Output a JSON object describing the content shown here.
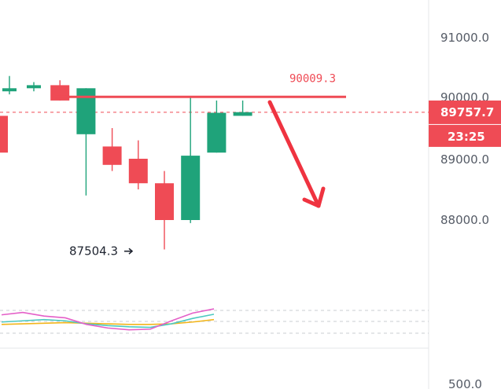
{
  "colors": {
    "up": "#1fa37a",
    "down": "#ef4b55",
    "level_line": "#ef4b55",
    "arrow": "#ef3340",
    "axis_text": "#555b66",
    "axis_border": "#e5e7ea",
    "stoch_fast": "#e45fc8",
    "stoch_slow": "#4cc9c0",
    "stoch_mid": "#f2b51b"
  },
  "chart_data": {
    "type": "candlestick",
    "y_ticks": [
      "91000.0",
      "90000.0",
      "89000.0",
      "88000.0"
    ],
    "price_range": [
      87000,
      91500
    ],
    "candles": [
      {
        "o": 89700,
        "h": 89750,
        "l": 89000,
        "c": 89100
      },
      {
        "o": 90100,
        "h": 90350,
        "l": 90050,
        "c": 90150
      },
      {
        "o": 90150,
        "h": 90250,
        "l": 90100,
        "c": 90200
      },
      {
        "o": 90200,
        "h": 90280,
        "l": 89950,
        "c": 89950
      },
      {
        "o": 89400,
        "h": 90150,
        "l": 88400,
        "c": 90150
      },
      {
        "o": 89200,
        "h": 89500,
        "l": 88800,
        "c": 88900
      },
      {
        "o": 89000,
        "h": 89300,
        "l": 88500,
        "c": 88600
      },
      {
        "o": 88600,
        "h": 88800,
        "l": 87520,
        "c": 88000
      },
      {
        "o": 88000,
        "h": 90000,
        "l": 87950,
        "c": 89050
      },
      {
        "o": 89100,
        "h": 89950,
        "l": 89100,
        "c": 89750
      },
      {
        "o": 89700,
        "h": 89950,
        "l": 89700,
        "c": 89760
      }
    ],
    "resistance_level": {
      "value": 90009.3,
      "label": "90009.3"
    },
    "low_marker": {
      "value": 87504.3,
      "label": "87504.3"
    },
    "current_price": {
      "value": 89757.7,
      "label": "89757.7"
    },
    "countdown": "23:25",
    "indicator": {
      "axis_label": "500.0",
      "fast": [
        72,
        80,
        68,
        62,
        40,
        28,
        22,
        24,
        52,
        78,
        92
      ],
      "slow": [
        48,
        52,
        56,
        52,
        42,
        36,
        32,
        30,
        42,
        60,
        74
      ],
      "mid": [
        40,
        42,
        44,
        46,
        44,
        42,
        40,
        40,
        42,
        48,
        56
      ]
    }
  }
}
